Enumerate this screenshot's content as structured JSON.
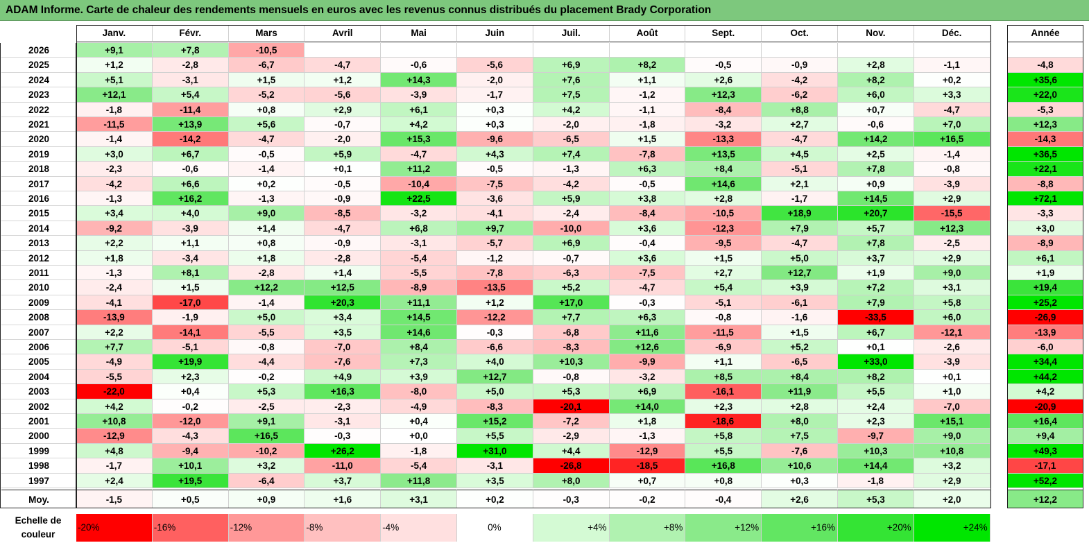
{
  "title": "ADAM Informe. Carte de chaleur des rendements mensuels en euros avec les revenus connus distribués du placement Brady Corporation",
  "months": [
    "Janv.",
    "Févr.",
    "Mars",
    "Avril",
    "Mai",
    "Juin",
    "Juil.",
    "Août",
    "Sept.",
    "Oct.",
    "Nov.",
    "Déc."
  ],
  "year_header": "Année",
  "avg_label": "Moy.",
  "scale_label_1": "Echelle de",
  "scale_label_2": "couleur",
  "scale_values": [
    -20,
    -16,
    -12,
    -8,
    -4,
    0,
    4,
    8,
    12,
    16,
    20,
    24
  ],
  "scale_labels": [
    "-20%",
    "-16%",
    "-12%",
    "-8%",
    "-4%",
    "0%",
    "+4%",
    "+8%",
    "+12%",
    "+16%",
    "+20%",
    "+24%"
  ],
  "chart_data": {
    "type": "heatmap",
    "title": "ADAM Informe. Carte de chaleur des rendements mensuels en euros avec les revenus connus distribués du placement Brady Corporation",
    "unit": "%",
    "rows": [
      {
        "year": "2026",
        "months": [
          "+9,1",
          "+7,8",
          "-10,5",
          "",
          "",
          "",
          "",
          "",
          "",
          "",
          "",
          ""
        ],
        "annual": ""
      },
      {
        "year": "2025",
        "months": [
          "+1,2",
          "-2,8",
          "-6,7",
          "-4,7",
          "-0,6",
          "-5,6",
          "+6,9",
          "+8,2",
          "-0,5",
          "-0,9",
          "+2,8",
          "-1,1"
        ],
        "annual": "-4,8"
      },
      {
        "year": "2024",
        "months": [
          "+5,1",
          "-3,1",
          "+1,5",
          "+1,2",
          "+14,3",
          "-2,0",
          "+7,6",
          "+1,1",
          "+2,6",
          "-4,2",
          "+8,2",
          "+0,2"
        ],
        "annual": "+35,6"
      },
      {
        "year": "2023",
        "months": [
          "+12,1",
          "+5,4",
          "-5,2",
          "-5,6",
          "-3,9",
          "-1,7",
          "+7,5",
          "-1,2",
          "+12,3",
          "-6,2",
          "+6,0",
          "+3,3"
        ],
        "annual": "+22,0"
      },
      {
        "year": "2022",
        "months": [
          "-1,8",
          "-11,4",
          "+0,8",
          "+2,9",
          "+6,1",
          "+0,3",
          "+4,2",
          "-1,1",
          "-8,4",
          "+8,8",
          "+0,7",
          "-4,7"
        ],
        "annual": "-5,3"
      },
      {
        "year": "2021",
        "months": [
          "-11,5",
          "+13,9",
          "+5,6",
          "-0,7",
          "+4,2",
          "+0,3",
          "-2,0",
          "-1,8",
          "-3,2",
          "+2,7",
          "-0,6",
          "+7,0"
        ],
        "annual": "+12,3"
      },
      {
        "year": "2020",
        "months": [
          "-1,4",
          "-14,2",
          "-4,7",
          "-2,0",
          "+15,3",
          "-9,6",
          "-6,5",
          "+1,5",
          "-13,3",
          "-4,7",
          "+14,2",
          "+16,5"
        ],
        "annual": "-14,3"
      },
      {
        "year": "2019",
        "months": [
          "+3,0",
          "+6,7",
          "-0,5",
          "+5,9",
          "-4,7",
          "+4,3",
          "+7,4",
          "-7,8",
          "+13,5",
          "+4,5",
          "+2,5",
          "-1,4"
        ],
        "annual": "+36,5"
      },
      {
        "year": "2018",
        "months": [
          "-2,3",
          "-0,6",
          "-1,4",
          "+0,1",
          "+11,2",
          "-0,5",
          "-1,3",
          "+6,3",
          "+8,4",
          "-5,1",
          "+7,8",
          "-0,8"
        ],
        "annual": "+22,1"
      },
      {
        "year": "2017",
        "months": [
          "-4,2",
          "+6,6",
          "+0,2",
          "-0,5",
          "-10,4",
          "-7,5",
          "-4,2",
          "-0,5",
          "+14,6",
          "+2,1",
          "+0,9",
          "-3,9"
        ],
        "annual": "-8,8"
      },
      {
        "year": "2016",
        "months": [
          "-1,3",
          "+16,2",
          "-1,3",
          "-0,9",
          "+22,5",
          "-3,6",
          "+5,9",
          "+3,8",
          "+2,8",
          "-1,7",
          "+14,5",
          "+2,9"
        ],
        "annual": "+72,1"
      },
      {
        "year": "2015",
        "months": [
          "+3,4",
          "+4,0",
          "+9,0",
          "-8,5",
          "-3,2",
          "-4,1",
          "-2,4",
          "-8,4",
          "-10,5",
          "+18,9",
          "+20,7",
          "-15,5"
        ],
        "annual": "-3,3"
      },
      {
        "year": "2014",
        "months": [
          "-9,2",
          "-3,9",
          "+1,4",
          "-4,7",
          "+6,8",
          "+9,7",
          "-10,0",
          "+3,6",
          "-12,3",
          "+7,9",
          "+5,7",
          "+12,3"
        ],
        "annual": "+3,0"
      },
      {
        "year": "2013",
        "months": [
          "+2,2",
          "+1,1",
          "+0,8",
          "-0,9",
          "-3,1",
          "-5,7",
          "+6,9",
          "-0,4",
          "-9,5",
          "-4,7",
          "+7,8",
          "-2,5"
        ],
        "annual": "-8,9"
      },
      {
        "year": "2012",
        "months": [
          "+1,8",
          "-3,4",
          "+1,8",
          "-2,8",
          "-5,4",
          "-1,2",
          "-0,7",
          "+3,6",
          "+1,5",
          "+5,0",
          "+3,7",
          "+2,9"
        ],
        "annual": "+6,1"
      },
      {
        "year": "2011",
        "months": [
          "-1,3",
          "+8,1",
          "-2,8",
          "+1,4",
          "-5,5",
          "-7,8",
          "-6,3",
          "-7,5",
          "+2,7",
          "+12,7",
          "+1,9",
          "+9,0"
        ],
        "annual": "+1,9"
      },
      {
        "year": "2010",
        "months": [
          "-2,4",
          "+1,5",
          "+12,2",
          "+12,5",
          "-8,9",
          "-13,5",
          "+5,2",
          "-4,7",
          "+5,4",
          "+3,9",
          "+7,2",
          "+3,1"
        ],
        "annual": "+19,4"
      },
      {
        "year": "2009",
        "months": [
          "-4,1",
          "-17,0",
          "-1,4",
          "+20,3",
          "+11,1",
          "+1,2",
          "+17,0",
          "-0,3",
          "-5,1",
          "-6,1",
          "+7,9",
          "+5,8"
        ],
        "annual": "+25,2"
      },
      {
        "year": "2008",
        "months": [
          "-13,9",
          "-1,9",
          "+5,0",
          "+3,4",
          "+14,5",
          "-12,2",
          "+7,7",
          "+6,3",
          "-0,8",
          "-1,6",
          "-33,5",
          "+6,0"
        ],
        "annual": "-26,9"
      },
      {
        "year": "2007",
        "months": [
          "+2,2",
          "-14,1",
          "-5,5",
          "+3,5",
          "+14,6",
          "-0,3",
          "-6,8",
          "+11,6",
          "-11,5",
          "+1,5",
          "+6,7",
          "-12,1"
        ],
        "annual": "-13,9"
      },
      {
        "year": "2006",
        "months": [
          "+7,7",
          "-5,1",
          "-0,8",
          "-7,0",
          "+8,4",
          "-6,6",
          "-8,3",
          "+12,6",
          "-6,9",
          "+5,2",
          "+0,1",
          "-2,6"
        ],
        "annual": "-6,0"
      },
      {
        "year": "2005",
        "months": [
          "-4,9",
          "+19,9",
          "-4,4",
          "-7,6",
          "+7,3",
          "+4,0",
          "+10,3",
          "-9,9",
          "+1,1",
          "-6,5",
          "+33,0",
          "-3,9"
        ],
        "annual": "+34,4"
      },
      {
        "year": "2004",
        "months": [
          "-5,5",
          "+2,3",
          "-0,2",
          "+4,9",
          "+3,9",
          "+12,7",
          "-0,8",
          "-3,2",
          "+8,5",
          "+8,4",
          "+8,2",
          "+0,1"
        ],
        "annual": "+44,2"
      },
      {
        "year": "2003",
        "months": [
          "-22,0",
          "+0,4",
          "+5,3",
          "+16,3",
          "-8,0",
          "+5,0",
          "+5,3",
          "+6,9",
          "-16,1",
          "+11,9",
          "+5,5",
          "+1,0"
        ],
        "annual": "+4,2"
      },
      {
        "year": "2002",
        "months": [
          "+4,2",
          "-0,2",
          "-2,5",
          "-2,3",
          "-4,9",
          "-8,3",
          "-20,1",
          "+14,0",
          "+2,3",
          "+2,8",
          "+2,4",
          "-7,0"
        ],
        "annual": "-20,9"
      },
      {
        "year": "2001",
        "months": [
          "+10,8",
          "-12,0",
          "+9,1",
          "-3,1",
          "+0,4",
          "+15,2",
          "-7,2",
          "+1,8",
          "-18,6",
          "+8,0",
          "+2,3",
          "+15,1"
        ],
        "annual": "+16,4"
      },
      {
        "year": "2000",
        "months": [
          "-12,9",
          "-4,3",
          "+16,5",
          "-0,3",
          "+0,0",
          "+5,5",
          "-2,9",
          "-1,3",
          "+5,8",
          "+7,5",
          "-9,7",
          "+9,0"
        ],
        "annual": "+9,4"
      },
      {
        "year": "1999",
        "months": [
          "+4,8",
          "-9,4",
          "-10,2",
          "+26,2",
          "-1,8",
          "+31,0",
          "+4,4",
          "-12,9",
          "+5,5",
          "-7,6",
          "+10,3",
          "+10,8"
        ],
        "annual": "+49,3"
      },
      {
        "year": "1998",
        "months": [
          "-1,7",
          "+10,1",
          "+3,2",
          "-11,0",
          "-5,4",
          "-3,1",
          "-26,8",
          "-18,5",
          "+16,8",
          "+10,6",
          "+14,4",
          "+3,2"
        ],
        "annual": "-17,1"
      },
      {
        "year": "1997",
        "months": [
          "+2,4",
          "+19,5",
          "-6,4",
          "+3,7",
          "+11,8",
          "+3,5",
          "+8,0",
          "+0,7",
          "+0,8",
          "+0,3",
          "-1,8",
          "+2,9"
        ],
        "annual": "+52,2"
      }
    ],
    "average": {
      "months": [
        "-1,5",
        "+0,5",
        "+0,9",
        "+1,6",
        "+3,1",
        "+0,2",
        "-0,3",
        "-0,2",
        "-0,4",
        "+2,6",
        "+5,3",
        "+2,0"
      ],
      "annual": "+12,2"
    }
  }
}
